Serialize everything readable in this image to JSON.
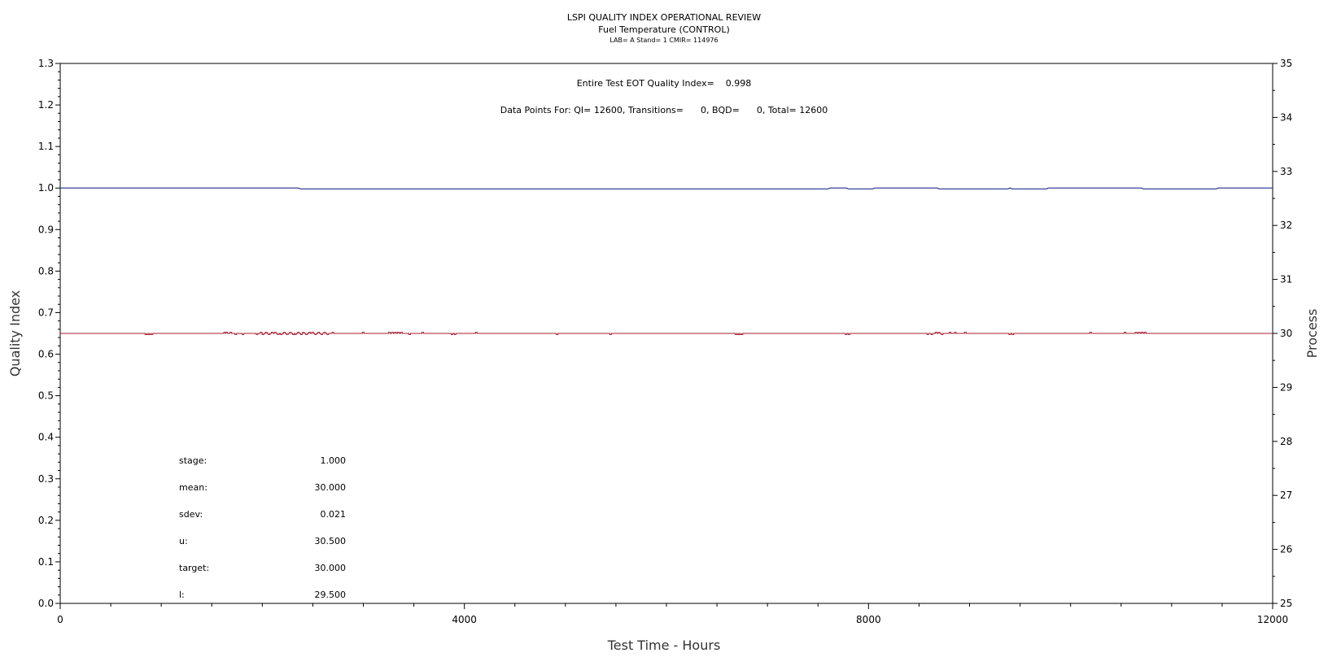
{
  "titles": {
    "line1": "LSPI QUALITY INDEX OPERATIONAL REVIEW",
    "line2": "Fuel Temperature (CONTROL)",
    "line3": "LAB= A Stand= 1 CMIR= 114976"
  },
  "annotations": {
    "quality_index": "Entire Test EOT Quality Index=    0.998",
    "data_points": "Data Points For: QI= 12600, Transitions=      0, BQD=      0, Total= 12600"
  },
  "stats": [
    {
      "label": "stage:",
      "value": "1.000"
    },
    {
      "label": "mean:",
      "value": "30.000"
    },
    {
      "label": "sdev:",
      "value": "0.021"
    },
    {
      "label": "u:",
      "value": "30.500"
    },
    {
      "label": "target:",
      "value": "30.000"
    },
    {
      "label": "l:",
      "value": "29.500"
    }
  ],
  "chart_data": {
    "type": "line",
    "xlabel": "Test Time - Hours",
    "ylabel_left": "Quality Index",
    "ylabel_right": "Process",
    "xlim": [
      0,
      12000
    ],
    "ylim_left": [
      0,
      1.3
    ],
    "ylim_right": [
      25,
      35
    ],
    "x_ticks": [
      0,
      4000,
      8000,
      12000
    ],
    "y_ticks_left": [
      0.0,
      0.1,
      0.2,
      0.3,
      0.4,
      0.5,
      0.6,
      0.7,
      0.8,
      0.9,
      1.0,
      1.1,
      1.2,
      1.3
    ],
    "y_ticks_left_labels": [
      "0.0",
      "0.1",
      "0.2",
      "0.3",
      "0.4",
      "0.5",
      "0.6",
      "0.7",
      "0.8",
      "0.9",
      "1.0",
      "1.1",
      "1.2",
      "1.3"
    ],
    "y_ticks_right": [
      25,
      26,
      27,
      28,
      29,
      30,
      31,
      32,
      33,
      34,
      35
    ],
    "series": [
      {
        "color": "#1f2f8f",
        "axis": "left",
        "points": [
          [
            0,
            1.0
          ],
          [
            2350,
            1.0
          ],
          [
            2380,
            0.998
          ],
          [
            7600,
            0.998
          ],
          [
            7620,
            1.0
          ],
          [
            7780,
            1.0
          ],
          [
            7800,
            0.998
          ],
          [
            8040,
            0.998
          ],
          [
            8060,
            1.0
          ],
          [
            8680,
            1.0
          ],
          [
            8700,
            0.998
          ],
          [
            9380,
            0.998
          ],
          [
            9400,
            1.0
          ],
          [
            9420,
            0.998
          ],
          [
            9760,
            0.998
          ],
          [
            9780,
            1.0
          ],
          [
            10700,
            1.0
          ],
          [
            10720,
            0.998
          ],
          [
            11440,
            0.998
          ],
          [
            11460,
            1.0
          ],
          [
            12000,
            1.0
          ]
        ]
      },
      {
        "color": "#a51c30",
        "axis": "right",
        "base": 30.0,
        "events": [
          [
            840,
            29.98
          ],
          [
            860,
            29.98
          ],
          [
            880,
            29.98
          ],
          [
            900,
            29.98
          ],
          [
            1620,
            30.02
          ],
          [
            1640,
            30.02
          ],
          [
            1680,
            30.02
          ],
          [
            1730,
            29.98
          ],
          [
            1800,
            29.98
          ],
          [
            1940,
            29.98
          ],
          [
            1980,
            30.02
          ],
          [
            2000,
            29.98
          ],
          [
            2030,
            30.02
          ],
          [
            2060,
            29.98
          ],
          [
            2090,
            30.02
          ],
          [
            2120,
            30.02
          ],
          [
            2150,
            29.98
          ],
          [
            2180,
            29.98
          ],
          [
            2210,
            30.02
          ],
          [
            2240,
            29.98
          ],
          [
            2270,
            30.02
          ],
          [
            2300,
            29.98
          ],
          [
            2320,
            29.98
          ],
          [
            2350,
            30.02
          ],
          [
            2380,
            29.98
          ],
          [
            2400,
            30.02
          ],
          [
            2430,
            29.98
          ],
          [
            2460,
            30.02
          ],
          [
            2490,
            30.02
          ],
          [
            2520,
            29.98
          ],
          [
            2550,
            30.02
          ],
          [
            2580,
            29.98
          ],
          [
            2610,
            30.02
          ],
          [
            2640,
            29.98
          ],
          [
            2690,
            30.02
          ],
          [
            2990,
            30.02
          ],
          [
            3250,
            30.02
          ],
          [
            3280,
            30.02
          ],
          [
            3310,
            30.02
          ],
          [
            3340,
            30.02
          ],
          [
            3370,
            30.02
          ],
          [
            3450,
            29.98
          ],
          [
            3580,
            30.02
          ],
          [
            3870,
            29.98
          ],
          [
            3900,
            29.98
          ],
          [
            4110,
            30.02
          ],
          [
            4910,
            29.98
          ],
          [
            5440,
            29.98
          ],
          [
            6680,
            29.98
          ],
          [
            6700,
            29.98
          ],
          [
            6720,
            29.98
          ],
          [
            6740,
            29.98
          ],
          [
            7770,
            29.98
          ],
          [
            7800,
            29.98
          ],
          [
            8580,
            29.98
          ],
          [
            8620,
            29.98
          ],
          [
            8660,
            30.02
          ],
          [
            8690,
            30.02
          ],
          [
            8720,
            29.98
          ],
          [
            8800,
            30.02
          ],
          [
            8850,
            30.02
          ],
          [
            8950,
            30.02
          ],
          [
            9390,
            29.98
          ],
          [
            9420,
            29.98
          ],
          [
            10190,
            30.02
          ],
          [
            10530,
            30.02
          ],
          [
            10640,
            30.02
          ],
          [
            10670,
            30.02
          ],
          [
            10700,
            30.02
          ],
          [
            10730,
            30.02
          ]
        ]
      }
    ]
  }
}
